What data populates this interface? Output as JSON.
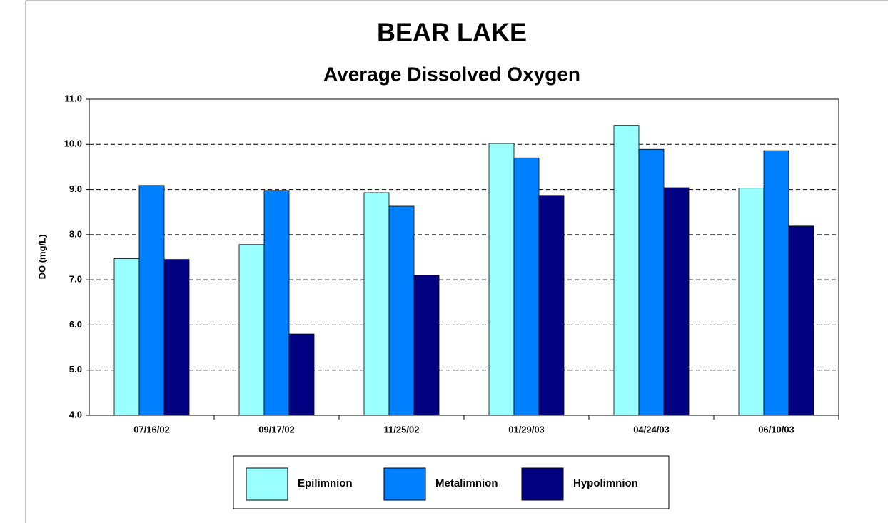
{
  "chart_data": {
    "type": "bar",
    "title": "BEAR LAKE",
    "subtitle": "Average Dissolved Oxygen",
    "y_label": "DO (mg/L)",
    "categories": [
      "07/16/02",
      "09/17/02",
      "11/25/02",
      "01/29/03",
      "04/24/03",
      "06/10/03"
    ],
    "series": [
      {
        "name": "Epilimnion",
        "color": "#99ffff",
        "values": [
          7.47,
          7.78,
          8.93,
          10.02,
          10.42,
          9.03
        ]
      },
      {
        "name": "Metalimnion",
        "color": "#0080ff",
        "values": [
          9.09,
          8.98,
          8.63,
          9.7,
          9.89,
          9.86
        ]
      },
      {
        "name": "Hypolimnion",
        "color": "#000080",
        "values": [
          7.45,
          5.8,
          7.1,
          8.87,
          9.04,
          8.19
        ]
      }
    ],
    "ylim": [
      4,
      11
    ],
    "yticks": [
      {
        "value": 4,
        "label": "4.0"
      },
      {
        "value": 5,
        "label": "5.0"
      },
      {
        "value": 6,
        "label": "6.0"
      },
      {
        "value": 7,
        "label": "7.0"
      },
      {
        "value": 8,
        "label": "8.0"
      },
      {
        "value": 9,
        "label": "9.0"
      },
      {
        "value": 10,
        "label": "10.0"
      },
      {
        "value": 11,
        "label": "11.0"
      }
    ],
    "grid": true,
    "legend": "bottom"
  }
}
